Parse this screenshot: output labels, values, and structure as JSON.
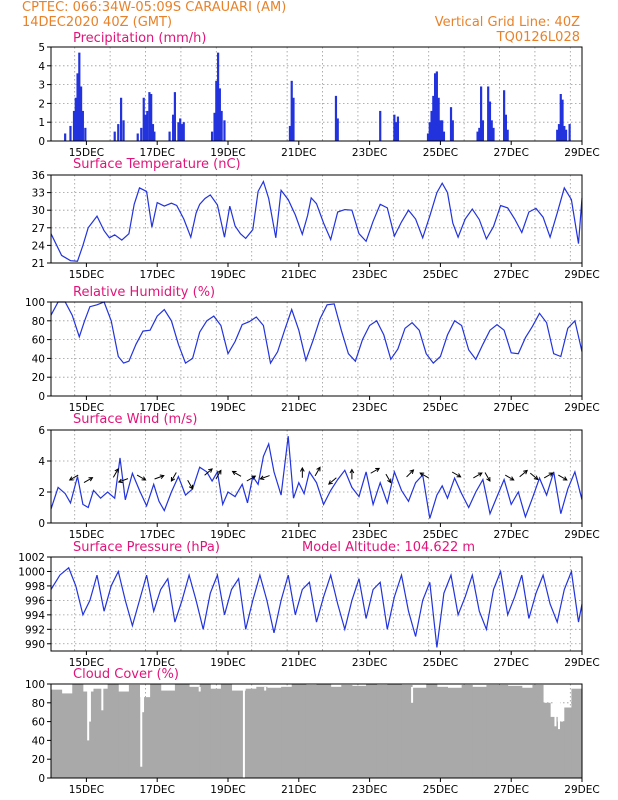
{
  "header": {
    "line1": "CPTEC:   066:34W-05:09S   CARAUARI (AM)",
    "line2": "14DEC2020 40Z (GMT)",
    "grid_note": "Vertical Grid Line: 40Z",
    "code": "TQ0126L028"
  },
  "model_altitude": "Model Altitude: 104.622 m",
  "colors": {
    "header": "#e8822a",
    "title": "#e0157a",
    "series": "#2233dd",
    "cloud": "#a9a9a9",
    "grid": "#999999"
  },
  "x_ticks": [
    "15DEC",
    "17DEC",
    "19DEC",
    "21DEC",
    "23DEC",
    "25DEC",
    "27DEC",
    "29DEC"
  ],
  "chart_data": [
    {
      "type": "bar",
      "title": "Precipitation (mm/h)",
      "ylim": [
        0,
        5
      ],
      "yticks": [
        0,
        1,
        2,
        3,
        4,
        5
      ],
      "x_range_days": [
        14,
        29
      ],
      "bars": [
        [
          14.4,
          0.4
        ],
        [
          14.55,
          0.8
        ],
        [
          14.65,
          1.6
        ],
        [
          14.7,
          2.3
        ],
        [
          14.75,
          3.6
        ],
        [
          14.8,
          4.7
        ],
        [
          14.85,
          2.9
        ],
        [
          14.9,
          1.6
        ],
        [
          14.97,
          0.7
        ],
        [
          15.8,
          0.5
        ],
        [
          15.9,
          0.9
        ],
        [
          15.98,
          2.3
        ],
        [
          16.05,
          1.1
        ],
        [
          16.45,
          0.4
        ],
        [
          16.55,
          0.7
        ],
        [
          16.62,
          2.3
        ],
        [
          16.67,
          1.4
        ],
        [
          16.72,
          1.6
        ],
        [
          16.78,
          2.6
        ],
        [
          16.83,
          2.5
        ],
        [
          16.88,
          0.9
        ],
        [
          16.92,
          0.5
        ],
        [
          17.35,
          0.5
        ],
        [
          17.45,
          1.4
        ],
        [
          17.5,
          2.6
        ],
        [
          17.6,
          1.0
        ],
        [
          17.65,
          1.2
        ],
        [
          17.7,
          0.9
        ],
        [
          17.75,
          1.0
        ],
        [
          18.55,
          0.5
        ],
        [
          18.62,
          1.5
        ],
        [
          18.67,
          3.2
        ],
        [
          18.72,
          4.7
        ],
        [
          18.77,
          2.8
        ],
        [
          18.82,
          1.6
        ],
        [
          18.9,
          1.1
        ],
        [
          20.75,
          0.8
        ],
        [
          20.8,
          3.2
        ],
        [
          20.85,
          2.3
        ],
        [
          22.05,
          2.4
        ],
        [
          22.1,
          1.2
        ],
        [
          23.3,
          1.6
        ],
        [
          23.7,
          1.4
        ],
        [
          23.75,
          1.0
        ],
        [
          23.8,
          1.3
        ],
        [
          24.65,
          0.4
        ],
        [
          24.7,
          1.0
        ],
        [
          24.75,
          1.6
        ],
        [
          24.8,
          2.4
        ],
        [
          24.85,
          3.6
        ],
        [
          24.9,
          3.7
        ],
        [
          24.95,
          2.3
        ],
        [
          25.0,
          1.1
        ],
        [
          25.05,
          1.1
        ],
        [
          25.1,
          0.5
        ],
        [
          25.3,
          1.8
        ],
        [
          25.35,
          1.1
        ],
        [
          26.05,
          0.5
        ],
        [
          26.1,
          0.7
        ],
        [
          26.15,
          2.9
        ],
        [
          26.2,
          1.1
        ],
        [
          26.35,
          2.9
        ],
        [
          26.4,
          2.1
        ],
        [
          26.45,
          1.1
        ],
        [
          26.5,
          0.7
        ],
        [
          26.8,
          2.7
        ],
        [
          26.85,
          1.4
        ],
        [
          26.9,
          0.6
        ],
        [
          28.3,
          0.6
        ],
        [
          28.35,
          0.9
        ],
        [
          28.4,
          2.5
        ],
        [
          28.45,
          2.2
        ],
        [
          28.5,
          0.8
        ],
        [
          28.55,
          0.6
        ],
        [
          28.65,
          0.9
        ]
      ]
    },
    {
      "type": "line",
      "title": "Surface Temperature (nC)",
      "ylim": [
        21,
        36
      ],
      "yticks": [
        21,
        24,
        27,
        30,
        33,
        36
      ],
      "x": [
        14.0,
        14.3,
        14.55,
        14.75,
        14.9,
        15.05,
        15.3,
        15.5,
        15.65,
        15.8,
        16.0,
        16.2,
        16.35,
        16.5,
        16.7,
        16.85,
        17.0,
        17.2,
        17.4,
        17.55,
        17.75,
        17.95,
        18.1,
        18.2,
        18.35,
        18.5,
        18.7,
        18.9,
        19.05,
        19.2,
        19.35,
        19.5,
        19.7,
        19.85,
        20.0,
        20.15,
        20.35,
        20.5,
        20.7,
        20.9,
        21.1,
        21.25,
        21.35,
        21.5,
        21.7,
        21.9,
        22.1,
        22.3,
        22.5,
        22.7,
        22.9,
        23.1,
        23.3,
        23.5,
        23.7,
        23.9,
        24.1,
        24.3,
        24.5,
        24.7,
        24.9,
        25.05,
        25.2,
        25.35,
        25.5,
        25.7,
        25.9,
        26.1,
        26.3,
        26.5,
        26.7,
        26.9,
        27.1,
        27.3,
        27.5,
        27.7,
        27.9,
        28.1,
        28.3,
        28.5,
        28.7,
        28.9,
        29.0
      ],
      "values": [
        26,
        22.3,
        21.4,
        21.3,
        24,
        27,
        29,
        26.5,
        25.3,
        25.8,
        24.9,
        26,
        31,
        33.8,
        33.2,
        27.1,
        31.3,
        30.7,
        31.2,
        30.8,
        28.5,
        25.4,
        29.5,
        31,
        32,
        32.6,
        30.9,
        25.4,
        30.7,
        27.3,
        26,
        25.2,
        26.7,
        33.2,
        34.9,
        32,
        25.3,
        33.4,
        31.8,
        29.2,
        25.9,
        29.1,
        32.1,
        31.1,
        27.8,
        25,
        29.7,
        30.1,
        30,
        26,
        24.7,
        28.1,
        31,
        30.4,
        25.6,
        28,
        30,
        28.5,
        25.3,
        29,
        33,
        34.6,
        33,
        27.8,
        25.4,
        28.5,
        30.2,
        28.4,
        25.1,
        27.2,
        30.8,
        30.4,
        28.5,
        26.2,
        29.7,
        30.3,
        28.8,
        25.4,
        29.5,
        33.8,
        31.8,
        24.3,
        32.1
      ]
    },
    {
      "type": "line",
      "title": "Relative Humidity (%)",
      "ylim": [
        0,
        100
      ],
      "yticks": [
        0,
        20,
        40,
        60,
        80,
        100
      ],
      "x": [
        14.0,
        14.2,
        14.4,
        14.6,
        14.8,
        14.95,
        15.1,
        15.3,
        15.5,
        15.7,
        15.9,
        16.05,
        16.2,
        16.4,
        16.6,
        16.8,
        17.0,
        17.2,
        17.4,
        17.6,
        17.8,
        18.0,
        18.2,
        18.4,
        18.6,
        18.8,
        19.0,
        19.2,
        19.4,
        19.6,
        19.8,
        20.0,
        20.2,
        20.4,
        20.6,
        20.8,
        21.0,
        21.2,
        21.4,
        21.6,
        21.8,
        22.0,
        22.2,
        22.4,
        22.6,
        22.8,
        23.0,
        23.2,
        23.4,
        23.6,
        23.8,
        24.0,
        24.2,
        24.4,
        24.6,
        24.8,
        25.0,
        25.2,
        25.4,
        25.6,
        25.8,
        26.0,
        26.2,
        26.4,
        26.6,
        26.8,
        27.0,
        27.2,
        27.4,
        27.6,
        27.8,
        28.0,
        28.2,
        28.4,
        28.6,
        28.8,
        29.0
      ],
      "values": [
        86,
        100,
        100,
        86,
        63,
        80,
        95,
        97,
        100,
        80,
        42,
        35,
        37,
        55,
        69,
        70,
        85,
        92,
        80,
        55,
        35,
        40,
        68,
        80,
        85,
        75,
        45,
        58,
        76,
        79,
        84,
        75,
        35,
        47,
        70,
        92,
        70,
        38,
        59,
        82,
        97,
        98,
        70,
        45,
        37,
        60,
        75,
        80,
        65,
        39,
        50,
        72,
        78,
        70,
        45,
        35,
        42,
        65,
        80,
        75,
        49,
        39,
        55,
        70,
        76,
        70,
        46,
        45,
        62,
        74,
        88,
        78,
        45,
        42,
        72,
        80,
        47
      ]
    },
    {
      "type": "line",
      "title": "Surface Wind (m/s)",
      "ylim": [
        0,
        6
      ],
      "yticks": [
        0,
        2,
        4,
        6
      ],
      "x": [
        14.0,
        14.2,
        14.4,
        14.55,
        14.75,
        14.9,
        15.05,
        15.2,
        15.4,
        15.6,
        15.8,
        15.95,
        16.1,
        16.3,
        16.5,
        16.7,
        16.9,
        17.05,
        17.2,
        17.4,
        17.6,
        17.8,
        18.0,
        18.2,
        18.4,
        18.55,
        18.7,
        18.85,
        19.0,
        19.2,
        19.4,
        19.55,
        19.7,
        19.85,
        20.0,
        20.15,
        20.3,
        20.5,
        20.7,
        20.85,
        21.0,
        21.15,
        21.3,
        21.5,
        21.7,
        21.9,
        22.1,
        22.3,
        22.5,
        22.7,
        22.9,
        23.1,
        23.3,
        23.5,
        23.7,
        23.9,
        24.1,
        24.3,
        24.5,
        24.7,
        24.9,
        25.05,
        25.2,
        25.4,
        25.6,
        25.8,
        26.0,
        26.2,
        26.4,
        26.6,
        26.8,
        27.0,
        27.2,
        27.4,
        27.6,
        27.8,
        28.0,
        28.2,
        28.4,
        28.6,
        28.8,
        29.0
      ],
      "values": [
        0.9,
        2.3,
        1.9,
        1.3,
        3.0,
        1.2,
        1.0,
        2.1,
        1.6,
        2.0,
        1.6,
        4.2,
        1.5,
        3.2,
        2.1,
        1.1,
        2.5,
        1.4,
        0.8,
        2.0,
        3.0,
        1.8,
        2.2,
        3.6,
        3.3,
        2.7,
        3.3,
        1.2,
        2.0,
        1.7,
        2.5,
        1.3,
        3.0,
        2.5,
        4.3,
        5.1,
        3.3,
        1.8,
        5.6,
        1.6,
        2.6,
        1.9,
        3.3,
        2.6,
        1.2,
        2.1,
        2.8,
        3.4,
        2.3,
        1.7,
        3.3,
        1.2,
        2.6,
        1.3,
        3.3,
        2.1,
        1.4,
        2.6,
        3.1,
        0.3,
        1.8,
        2.4,
        1.6,
        2.9,
        1.9,
        1.0,
        2.0,
        2.8,
        0.6,
        1.7,
        2.8,
        1.2,
        2.0,
        0.4,
        1.6,
        2.9,
        1.8,
        3.3,
        0.6,
        2.2,
        3.3,
        1.5
      ]
    },
    {
      "type": "line",
      "title": "Surface Pressure (hPa)",
      "ylim": [
        989,
        1002
      ],
      "yticks": [
        990,
        992,
        994,
        996,
        998,
        1000,
        1002
      ],
      "x": [
        14.0,
        14.25,
        14.5,
        14.7,
        14.9,
        15.1,
        15.3,
        15.5,
        15.7,
        15.9,
        16.1,
        16.3,
        16.5,
        16.7,
        16.9,
        17.1,
        17.3,
        17.5,
        17.7,
        17.9,
        18.1,
        18.3,
        18.5,
        18.7,
        18.9,
        19.1,
        19.3,
        19.5,
        19.7,
        19.9,
        20.1,
        20.3,
        20.5,
        20.7,
        20.9,
        21.1,
        21.3,
        21.5,
        21.7,
        21.9,
        22.1,
        22.3,
        22.5,
        22.7,
        22.9,
        23.1,
        23.3,
        23.5,
        23.7,
        23.9,
        24.1,
        24.3,
        24.5,
        24.7,
        24.9,
        25.1,
        25.3,
        25.5,
        25.7,
        25.9,
        26.1,
        26.3,
        26.5,
        26.7,
        26.9,
        27.1,
        27.3,
        27.5,
        27.7,
        27.9,
        28.1,
        28.3,
        28.5,
        28.7,
        28.9,
        29.0
      ],
      "values": [
        997.5,
        999.5,
        1000.5,
        998,
        994,
        996,
        999.5,
        994.5,
        998,
        1000,
        996,
        992.5,
        996,
        999.5,
        994.5,
        997.5,
        999,
        993,
        996,
        999.5,
        996,
        992,
        997,
        999.5,
        994,
        997.5,
        999,
        992,
        996,
        999.5,
        996,
        991.5,
        996,
        999.5,
        994,
        997.5,
        998.5,
        993,
        996.5,
        999.5,
        995.5,
        992,
        996,
        999,
        993.5,
        997.5,
        998.5,
        992,
        996.5,
        999.5,
        994.5,
        991,
        996,
        998.5,
        989.5,
        997,
        999.5,
        994,
        996.5,
        999.5,
        994.5,
        992,
        997.5,
        1000,
        994,
        996.5,
        999.5,
        993.5,
        997,
        999.5,
        995.5,
        993,
        997.5,
        1000,
        993,
        995.5
      ]
    },
    {
      "type": "bar",
      "title": "Cloud Cover (%)",
      "ylim": [
        0,
        100
      ],
      "yticks": [
        0,
        20,
        40,
        60,
        80,
        100
      ],
      "segments": [
        [
          14.0,
          94
        ],
        [
          14.3,
          90
        ],
        [
          14.6,
          100
        ],
        [
          14.9,
          92
        ],
        [
          15.2,
          95
        ],
        [
          15.6,
          100
        ],
        [
          15.9,
          92
        ],
        [
          16.2,
          99
        ],
        [
          16.5,
          86
        ],
        [
          16.8,
          100
        ],
        [
          17.1,
          93
        ],
        [
          17.5,
          100
        ],
        [
          17.9,
          97
        ],
        [
          18.2,
          100
        ],
        [
          18.5,
          95
        ],
        [
          18.8,
          100
        ],
        [
          19.1,
          93
        ],
        [
          19.5,
          95
        ],
        [
          19.8,
          97
        ],
        [
          20.1,
          96
        ],
        [
          20.5,
          97
        ],
        [
          20.8,
          100
        ],
        [
          21.2,
          99
        ],
        [
          21.5,
          100
        ],
        [
          21.9,
          97
        ],
        [
          22.2,
          99
        ],
        [
          22.5,
          98
        ],
        [
          22.9,
          100
        ],
        [
          23.2,
          99
        ],
        [
          23.5,
          100
        ],
        [
          23.9,
          99
        ],
        [
          24.2,
          96
        ],
        [
          24.6,
          100
        ],
        [
          24.9,
          97
        ],
        [
          25.2,
          96
        ],
        [
          25.6,
          99
        ],
        [
          25.9,
          97
        ],
        [
          26.3,
          99
        ],
        [
          26.6,
          99
        ],
        [
          26.9,
          98
        ],
        [
          27.3,
          96
        ],
        [
          27.6,
          99
        ],
        [
          27.9,
          80
        ],
        [
          28.1,
          65
        ],
        [
          28.3,
          60
        ],
        [
          28.5,
          75
        ],
        [
          28.7,
          95
        ],
        [
          29.0,
          97
        ]
      ],
      "spikes": [
        [
          15.05,
          40
        ],
        [
          15.1,
          60
        ],
        [
          15.45,
          72
        ],
        [
          16.55,
          12
        ],
        [
          16.6,
          70
        ],
        [
          18.2,
          92
        ],
        [
          19.45,
          0
        ],
        [
          20.05,
          93
        ],
        [
          24.2,
          80
        ],
        [
          28.25,
          55
        ],
        [
          28.35,
          52
        ]
      ]
    }
  ]
}
